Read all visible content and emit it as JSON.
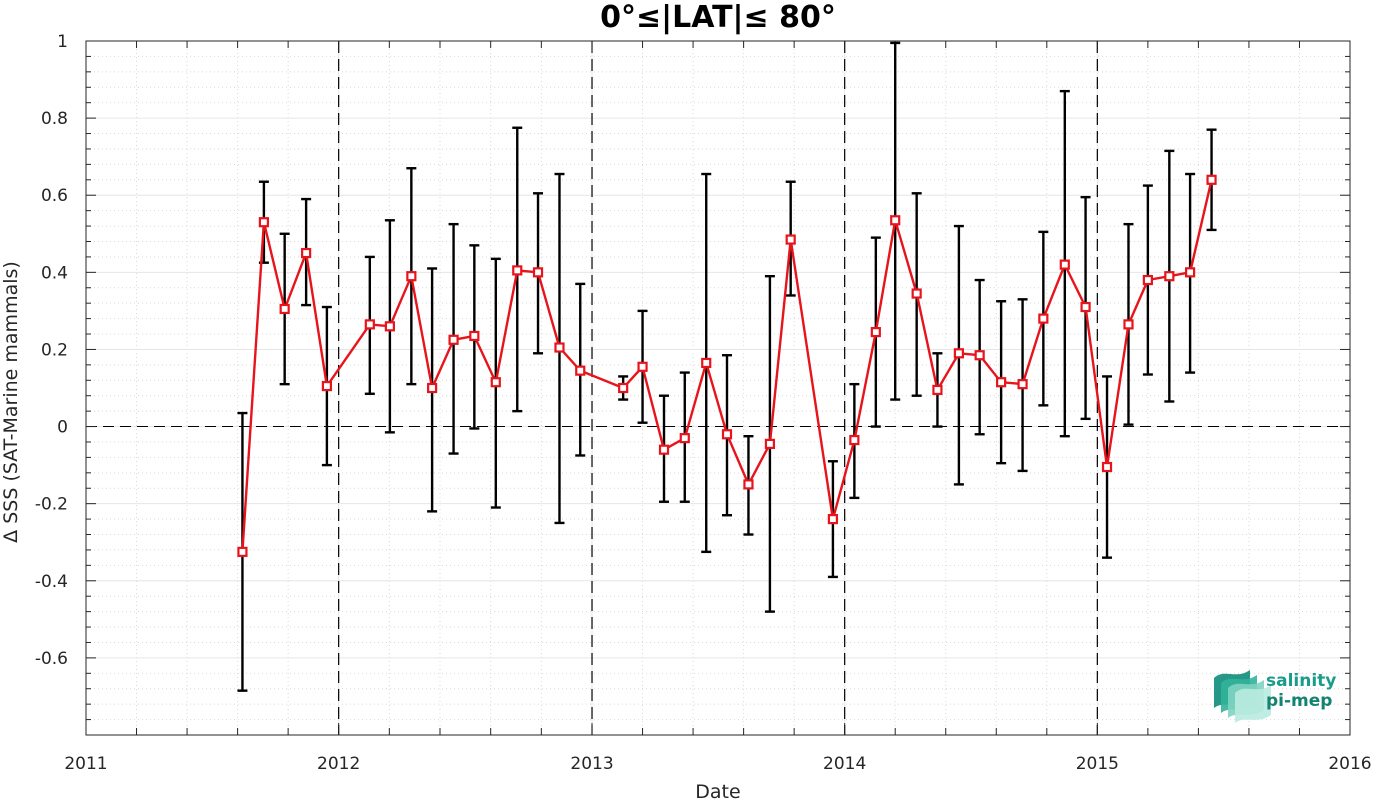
{
  "chart_data": {
    "type": "line",
    "title": "0°≤|LAT|≤ 80°",
    "xlabel": "Date",
    "ylabel": "Δ SSS (SAT-Marine mammals)",
    "xlim": [
      "2011-01-01",
      "2016-01-01"
    ],
    "ylim": [
      -0.8,
      1.0
    ],
    "x_ticks": [
      "2011",
      "2012",
      "2013",
      "2014",
      "2015",
      "2016"
    ],
    "y_ticks": [
      "1",
      "0.8",
      "0.6",
      "0.4",
      "0.2",
      "0",
      "-0.2",
      "-0.4",
      "-0.6"
    ],
    "y_tick_values": [
      1,
      0.8,
      0.6,
      0.4,
      0.2,
      0,
      -0.2,
      -0.4,
      -0.6
    ],
    "grid": true,
    "reference_line_y": 0,
    "year_separator_lines": [
      "2012-01-01",
      "2013-01-01",
      "2014-01-01",
      "2015-01-01"
    ],
    "series": [
      {
        "color": "#e8141c",
        "error_color": "#000000",
        "marker": "square",
        "points": [
          {
            "x": "2011-08-15",
            "y": -0.325,
            "lo": -0.685,
            "hi": 0.035
          },
          {
            "x": "2011-09-15",
            "y": 0.53,
            "lo": 0.425,
            "hi": 0.635
          },
          {
            "x": "2011-10-15",
            "y": 0.305,
            "lo": 0.11,
            "hi": 0.5
          },
          {
            "x": "2011-11-15",
            "y": 0.45,
            "lo": 0.315,
            "hi": 0.59
          },
          {
            "x": "2011-12-15",
            "y": 0.105,
            "lo": -0.1,
            "hi": 0.31
          },
          {
            "x": "2012-02-15",
            "y": 0.265,
            "lo": 0.085,
            "hi": 0.44
          },
          {
            "x": "2012-03-15",
            "y": 0.26,
            "lo": -0.015,
            "hi": 0.535
          },
          {
            "x": "2012-04-15",
            "y": 0.39,
            "lo": 0.11,
            "hi": 0.67
          },
          {
            "x": "2012-05-15",
            "y": 0.1,
            "lo": -0.22,
            "hi": 0.41
          },
          {
            "x": "2012-06-15",
            "y": 0.225,
            "lo": -0.07,
            "hi": 0.525
          },
          {
            "x": "2012-07-15",
            "y": 0.235,
            "lo": -0.005,
            "hi": 0.47
          },
          {
            "x": "2012-08-15",
            "y": 0.115,
            "lo": -0.21,
            "hi": 0.435
          },
          {
            "x": "2012-09-15",
            "y": 0.405,
            "lo": 0.04,
            "hi": 0.775
          },
          {
            "x": "2012-10-15",
            "y": 0.4,
            "lo": 0.19,
            "hi": 0.605
          },
          {
            "x": "2012-11-15",
            "y": 0.205,
            "lo": -0.25,
            "hi": 0.655
          },
          {
            "x": "2012-12-15",
            "y": 0.145,
            "lo": -0.075,
            "hi": 0.37
          },
          {
            "x": "2013-02-15",
            "y": 0.1,
            "lo": 0.07,
            "hi": 0.13
          },
          {
            "x": "2013-03-15",
            "y": 0.155,
            "lo": 0.01,
            "hi": 0.3
          },
          {
            "x": "2013-04-15",
            "y": -0.06,
            "lo": -0.195,
            "hi": 0.08
          },
          {
            "x": "2013-05-15",
            "y": -0.03,
            "lo": -0.195,
            "hi": 0.14
          },
          {
            "x": "2013-06-15",
            "y": 0.165,
            "lo": -0.325,
            "hi": 0.655
          },
          {
            "x": "2013-07-15",
            "y": -0.02,
            "lo": -0.23,
            "hi": 0.185
          },
          {
            "x": "2013-08-15",
            "y": -0.15,
            "lo": -0.28,
            "hi": -0.025
          },
          {
            "x": "2013-09-15",
            "y": -0.045,
            "lo": -0.48,
            "hi": 0.39
          },
          {
            "x": "2013-10-15",
            "y": 0.485,
            "lo": 0.34,
            "hi": 0.635
          },
          {
            "x": "2013-12-15",
            "y": -0.24,
            "lo": -0.39,
            "hi": -0.09
          },
          {
            "x": "2014-01-15",
            "y": -0.035,
            "lo": -0.185,
            "hi": 0.11
          },
          {
            "x": "2014-02-15",
            "y": 0.245,
            "lo": 0.0,
            "hi": 0.49
          },
          {
            "x": "2014-03-15",
            "y": 0.535,
            "lo": 0.07,
            "hi": 0.995
          },
          {
            "x": "2014-04-15",
            "y": 0.345,
            "lo": 0.08,
            "hi": 0.605
          },
          {
            "x": "2014-05-15",
            "y": 0.095,
            "lo": 0.0,
            "hi": 0.19
          },
          {
            "x": "2014-06-15",
            "y": 0.19,
            "lo": -0.15,
            "hi": 0.52
          },
          {
            "x": "2014-07-15",
            "y": 0.185,
            "lo": -0.02,
            "hi": 0.38
          },
          {
            "x": "2014-08-15",
            "y": 0.115,
            "lo": -0.095,
            "hi": 0.325
          },
          {
            "x": "2014-09-15",
            "y": 0.11,
            "lo": -0.115,
            "hi": 0.33
          },
          {
            "x": "2014-10-15",
            "y": 0.28,
            "lo": 0.055,
            "hi": 0.505
          },
          {
            "x": "2014-11-15",
            "y": 0.42,
            "lo": -0.025,
            "hi": 0.87
          },
          {
            "x": "2014-12-15",
            "y": 0.31,
            "lo": 0.02,
            "hi": 0.595
          },
          {
            "x": "2015-01-15",
            "y": -0.105,
            "lo": -0.34,
            "hi": 0.13
          },
          {
            "x": "2015-02-15",
            "y": 0.265,
            "lo": 0.005,
            "hi": 0.525
          },
          {
            "x": "2015-03-15",
            "y": 0.38,
            "lo": 0.135,
            "hi": 0.625
          },
          {
            "x": "2015-04-15",
            "y": 0.39,
            "lo": 0.065,
            "hi": 0.715
          },
          {
            "x": "2015-05-15",
            "y": 0.4,
            "lo": 0.14,
            "hi": 0.655
          },
          {
            "x": "2015-06-15",
            "y": 0.64,
            "lo": 0.51,
            "hi": 0.77
          }
        ]
      }
    ]
  },
  "logo": {
    "line1": "salinity",
    "line2": "pi-mep",
    "colors": [
      "#0f8c7a",
      "#33b39a",
      "#7fd3c1",
      "#b9ebe0"
    ]
  }
}
